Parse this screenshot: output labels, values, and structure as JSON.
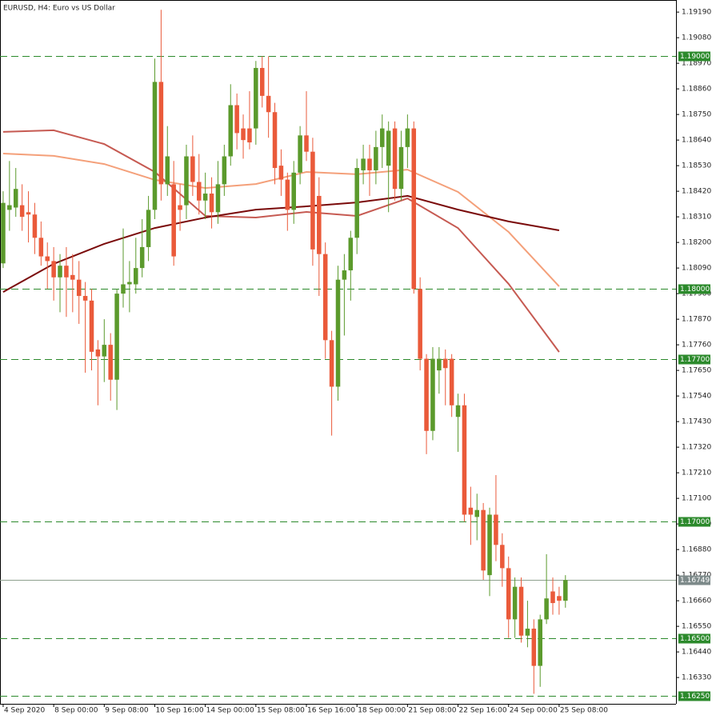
{
  "chart_data": {
    "type": "candlestick",
    "title": "EURUSD, H4:  Euro vs US Dollar",
    "ylim": [
      1.16217,
      1.19242
    ],
    "xlim": [
      -0.5,
      106.5
    ],
    "grid": false,
    "bull_color": "#5b9a2c",
    "bear_color": "#ea5a3a",
    "open": [
      1.1811,
      1.1834,
      1.1835,
      1.1836,
      1.1833,
      1.1832,
      1.1822,
      1.1814,
      1.1812,
      1.1805,
      1.181,
      1.1806,
      1.1804,
      1.1797,
      1.1795,
      1.1774,
      1.1771,
      1.1776,
      1.1761,
      1.1798,
      1.1802,
      1.1802,
      1.1809,
      1.1818,
      1.1834,
      1.1889,
      1.1845,
      1.1845,
      1.1836,
      1.1836,
      1.1857,
      1.1846,
      1.1838,
      1.1841,
      1.1833,
      1.1845,
      1.1857,
      1.1879,
      1.1869,
      1.1869,
      1.1869,
      1.1895,
      1.1883,
      1.1876,
      1.1853,
      1.1847,
      1.1834,
      1.185,
      1.1866,
      1.1859,
      1.184,
      1.1815,
      1.1778,
      1.1758,
      1.1804,
      1.1808,
      1.1822,
      1.1851,
      1.1856,
      1.1851,
      1.1861,
      1.1853,
      1.1869,
      1.1843,
      1.1861,
      1.1869,
      1.18,
      1.177,
      1.1739,
      1.1765,
      1.177,
      1.177,
      1.1745,
      1.175,
      1.1706,
      1.1702,
      1.1705,
      1.1677,
      1.1703,
      1.169,
      1.168,
      1.1658,
      1.1672,
      1.1651,
      1.1654,
      1.1638,
      1.1658,
      1.167,
      1.1668,
      1.1666
    ],
    "high": [
      1.1842,
      1.1855,
      1.1852,
      1.1845,
      1.1842,
      1.1837,
      1.1829,
      1.182,
      1.1818,
      1.1815,
      1.1818,
      1.1815,
      1.1812,
      1.1803,
      1.18,
      1.1778,
      1.1787,
      1.1781,
      1.18,
      1.1826,
      1.1812,
      1.1822,
      1.183,
      1.184,
      1.1899,
      1.192,
      1.187,
      1.1855,
      1.1845,
      1.1862,
      1.1866,
      1.1858,
      1.185,
      1.1848,
      1.1855,
      1.1862,
      1.1888,
      1.1884,
      1.1875,
      1.1885,
      1.1898,
      1.19,
      1.19,
      1.188,
      1.186,
      1.185,
      1.1855,
      1.187,
      1.1885,
      1.1865,
      1.1848,
      1.182,
      1.1782,
      1.181,
      1.1815,
      1.1825,
      1.1856,
      1.1862,
      1.1862,
      1.1868,
      1.1875,
      1.1872,
      1.1872,
      1.1868,
      1.1875,
      1.1872,
      1.1805,
      1.1772,
      1.1775,
      1.1775,
      1.1774,
      1.1772,
      1.1755,
      1.1755,
      1.1715,
      1.1712,
      1.1708,
      1.1706,
      1.172,
      1.1695,
      1.1685,
      1.1676,
      1.1676,
      1.1666,
      1.1658,
      1.166,
      1.1686,
      1.1676,
      1.1672,
      1.1677
    ],
    "low": [
      1.1809,
      1.1825,
      1.1831,
      1.1825,
      1.182,
      1.1815,
      1.181,
      1.18,
      1.1795,
      1.179,
      1.1788,
      1.179,
      1.1785,
      1.1764,
      1.1765,
      1.175,
      1.176,
      1.1752,
      1.1748,
      1.1792,
      1.179,
      1.1798,
      1.1805,
      1.1812,
      1.183,
      1.1838,
      1.184,
      1.181,
      1.1825,
      1.183,
      1.184,
      1.1832,
      1.183,
      1.1826,
      1.1828,
      1.184,
      1.1853,
      1.186,
      1.1856,
      1.186,
      1.1862,
      1.1878,
      1.1865,
      1.1845,
      1.184,
      1.1825,
      1.1828,
      1.1845,
      1.1855,
      1.181,
      1.1797,
      1.177,
      1.1737,
      1.1752,
      1.178,
      1.1795,
      1.1815,
      1.1845,
      1.184,
      1.1845,
      1.1852,
      1.1833,
      1.1838,
      1.1838,
      1.1852,
      1.1798,
      1.1765,
      1.1729,
      1.1735,
      1.1755,
      1.175,
      1.1745,
      1.173,
      1.17,
      1.169,
      1.1692,
      1.1675,
      1.1668,
      1.1683,
      1.1672,
      1.165,
      1.165,
      1.1648,
      1.1646,
      1.1626,
      1.1629,
      1.1656,
      1.166,
      1.166,
      1.1663
    ],
    "close": [
      1.1837,
      1.1836,
      1.1843,
      1.1831,
      1.1832,
      1.1822,
      1.1814,
      1.1812,
      1.1805,
      1.181,
      1.1805,
      1.1804,
      1.1797,
      1.1795,
      1.1773,
      1.1771,
      1.1776,
      1.1761,
      1.1798,
      1.1802,
      1.1803,
      1.1809,
      1.1818,
      1.1834,
      1.1889,
      1.1845,
      1.1857,
      1.1814,
      1.1834,
      1.1857,
      1.1846,
      1.1838,
      1.1841,
      1.1833,
      1.1845,
      1.1857,
      1.1879,
      1.1867,
      1.1864,
      1.1863,
      1.1895,
      1.1883,
      1.1876,
      1.1852,
      1.1847,
      1.1834,
      1.185,
      1.1866,
      1.1859,
      1.1817,
      1.1815,
      1.1778,
      1.1758,
      1.1804,
      1.1808,
      1.1822,
      1.1852,
      1.1856,
      1.1851,
      1.1861,
      1.1869,
      1.1868,
      1.1843,
      1.1861,
      1.1869,
      1.18,
      1.177,
      1.1739,
      1.177,
      1.177,
      1.1766,
      1.175,
      1.175,
      1.1703,
      1.1703,
      1.1705,
      1.1679,
      1.1703,
      1.169,
      1.168,
      1.1658,
      1.1672,
      1.1651,
      1.1654,
      1.1638,
      1.1658,
      1.1667,
      1.1665,
      1.1666,
      1.16749
    ],
    "moving_averages": [
      {
        "color": "#f4a07a",
        "x": [
          0,
          8,
          16,
          24,
          32,
          40,
          48,
          56,
          64,
          72,
          80,
          88
        ],
        "values": [
          1.18582,
          1.18572,
          1.18537,
          1.18469,
          1.18434,
          1.18451,
          1.18503,
          1.18493,
          1.18513,
          1.18417,
          1.18245,
          1.18011
        ]
      },
      {
        "color": "#c65a52",
        "x": [
          0,
          8,
          16,
          24,
          32,
          40,
          48,
          56,
          64,
          72,
          80,
          88
        ],
        "values": [
          1.18675,
          1.18682,
          1.18623,
          1.18503,
          1.18314,
          1.18307,
          1.18331,
          1.18314,
          1.18389,
          1.18262,
          1.18022,
          1.17729
        ]
      },
      {
        "color": "#7a0a0a",
        "x": [
          0,
          8,
          16,
          24,
          32,
          40,
          48,
          56,
          64,
          72,
          80,
          88
        ],
        "values": [
          1.17987,
          1.18108,
          1.18194,
          1.18262,
          1.18307,
          1.18341,
          1.18355,
          1.18372,
          1.184,
          1.18341,
          1.1829,
          1.18252
        ]
      }
    ],
    "level_color": "#2c8a2c",
    "levels": [
      {
        "value": 1.19,
        "label": "1.19000"
      },
      {
        "value": 1.18,
        "label": "1.18000"
      },
      {
        "value": 1.177,
        "label": "1.17700"
      },
      {
        "value": 1.17,
        "label": "1.17000"
      },
      {
        "value": 1.165,
        "label": "1.16500"
      },
      {
        "value": 1.1625,
        "label": "1.16250"
      }
    ],
    "last_price": 1.16749,
    "yticks": [
      {
        "value": 1.1919,
        "label": "1.19190"
      },
      {
        "value": 1.1908,
        "label": "1.19080"
      },
      {
        "value": 1.1897,
        "label": "1.18970"
      },
      {
        "value": 1.1886,
        "label": "1.18860"
      },
      {
        "value": 1.1875,
        "label": "1.18750"
      },
      {
        "value": 1.1864,
        "label": "1.18640"
      },
      {
        "value": 1.1853,
        "label": "1.18530"
      },
      {
        "value": 1.1842,
        "label": "1.18420"
      },
      {
        "value": 1.1831,
        "label": "1.18310"
      },
      {
        "value": 1.182,
        "label": "1.18200"
      },
      {
        "value": 1.1809,
        "label": "1.18090"
      },
      {
        "value": 1.1798,
        "label": "1.17980"
      },
      {
        "value": 1.1787,
        "label": "1.17870"
      },
      {
        "value": 1.1776,
        "label": "1.17760"
      },
      {
        "value": 1.1765,
        "label": "1.17650"
      },
      {
        "value": 1.1754,
        "label": "1.17540"
      },
      {
        "value": 1.1743,
        "label": "1.17430"
      },
      {
        "value": 1.1732,
        "label": "1.17320"
      },
      {
        "value": 1.1721,
        "label": "1.17210"
      },
      {
        "value": 1.171,
        "label": "1.17100"
      },
      {
        "value": 1.1699,
        "label": "1.16990"
      },
      {
        "value": 1.1688,
        "label": "1.16880"
      },
      {
        "value": 1.1677,
        "label": "1.16770"
      },
      {
        "value": 1.1666,
        "label": "1.16660"
      },
      {
        "value": 1.1655,
        "label": "1.16550"
      },
      {
        "value": 1.1644,
        "label": "1.16440"
      },
      {
        "value": 1.1633,
        "label": "1.16330"
      }
    ],
    "xticks": [
      {
        "value": 0,
        "label": "4 Sep 2020"
      },
      {
        "value": 8,
        "label": "8 Sep 00:00"
      },
      {
        "value": 16,
        "label": "9 Sep 08:00"
      },
      {
        "value": 24,
        "label": "10 Sep 16:00"
      },
      {
        "value": 32,
        "label": "14 Sep 00:00"
      },
      {
        "value": 40,
        "label": "15 Sep 08:00"
      },
      {
        "value": 48,
        "label": "16 Sep 16:00"
      },
      {
        "value": 56,
        "label": "18 Sep 00:00"
      },
      {
        "value": 64,
        "label": "21 Sep 08:00"
      },
      {
        "value": 72,
        "label": "22 Sep 16:00"
      },
      {
        "value": 80,
        "label": "24 Sep 00:00"
      },
      {
        "value": 88,
        "label": "25 Sep 08:00"
      }
    ]
  }
}
